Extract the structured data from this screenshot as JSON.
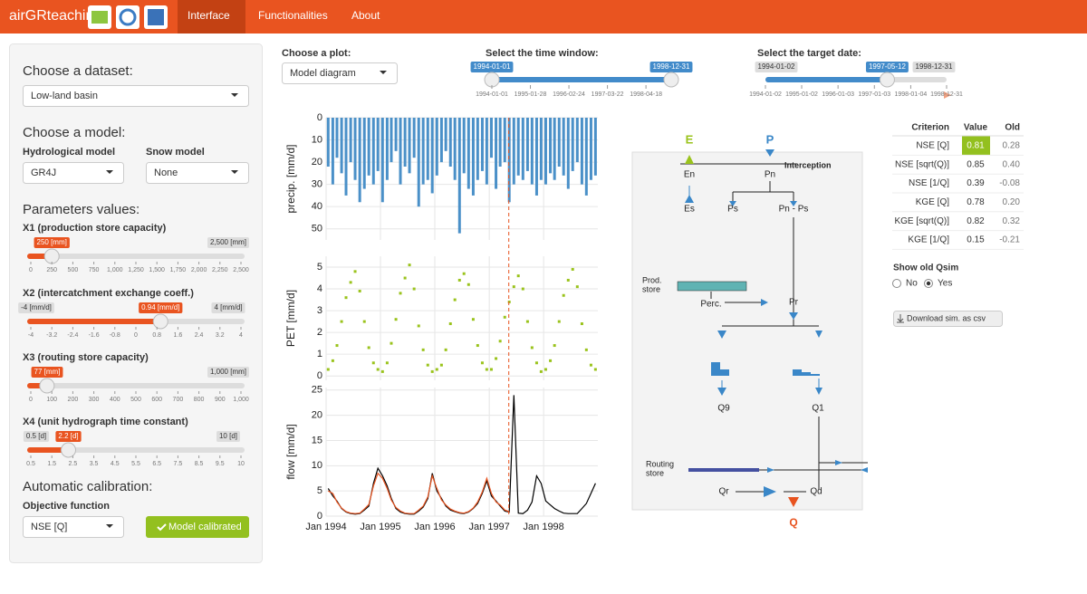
{
  "navbar": {
    "brand": "airGRteaching",
    "items": [
      "Interface",
      "Functionalities",
      "About"
    ],
    "active": "Interface"
  },
  "sidebar": {
    "dataset": {
      "title": "Choose a dataset:",
      "selected": "Low-land basin"
    },
    "model": {
      "title": "Choose a model:",
      "hydro_label": "Hydrological model",
      "hydro_selected": "GR4J",
      "snow_label": "Snow model",
      "snow_selected": "None"
    },
    "parameters": {
      "title": "Parameters values:",
      "sliders": [
        {
          "label": "X1 (production store capacity)",
          "min": 0,
          "max": 2500,
          "value": 250,
          "value_label": "250 [mm]",
          "max_label": "2,500 [mm]",
          "ticks": [
            "0",
            "250",
            "500",
            "750",
            "1,000",
            "1,250",
            "1,500",
            "1,750",
            "2,000",
            "2,250",
            "2,500"
          ]
        },
        {
          "label": "X2 (intercatchment exchange coeff.)",
          "min": -4,
          "max": 4,
          "value": 0.94,
          "min_label": "-4 [mm/d]",
          "value_label": "0.94 [mm/d]",
          "max_label": "4 [mm/d]",
          "ticks": [
            "-4",
            "-3.2",
            "-2.4",
            "-1.6",
            "-0.8",
            "0",
            "0.8",
            "1.6",
            "2.4",
            "3.2",
            "4"
          ]
        },
        {
          "label": "X3 (routing store capacity)",
          "min": 0,
          "max": 1000,
          "value": 77,
          "value_label": "77 [mm]",
          "max_label": "1,000 [mm]",
          "ticks": [
            "0",
            "100",
            "200",
            "300",
            "400",
            "500",
            "600",
            "700",
            "800",
            "900",
            "1,000"
          ]
        },
        {
          "label": "X4 (unit hydrograph time constant)",
          "min": 0.5,
          "max": 10,
          "value": 2.2,
          "min_label": "0.5 [d]",
          "value_label": "2.2 [d]",
          "max_label": "10 [d]",
          "ticks": [
            "0.5",
            "1.5",
            "2.5",
            "3.5",
            "4.5",
            "5.5",
            "6.5",
            "7.5",
            "8.5",
            "9.5",
            "10"
          ]
        }
      ]
    },
    "calibration": {
      "title": "Automatic calibration:",
      "objective_label": "Objective function",
      "objective_selected": "NSE [Q]",
      "button": "Model calibrated"
    }
  },
  "controls": {
    "plot": {
      "label": "Choose a plot:",
      "selected": "Model diagram"
    },
    "time_window": {
      "label": "Select the time window:",
      "values": [
        "1994-01-01",
        "1998-12-31"
      ],
      "ticks": [
        "1994-01-01",
        "1995-01-28",
        "1996-02-24",
        "1997-03-22",
        "1998-04-18"
      ]
    },
    "target_date": {
      "label": "Select the target date:",
      "min": "1994-01-02",
      "max": "1998-12-31",
      "value": "1997-05-12",
      "ticks": [
        "1994-01-02",
        "1995-01-02",
        "1996-01-03",
        "1997-01-03",
        "1998-01-04",
        "1998-12-31"
      ]
    }
  },
  "plots": {
    "x": [
      "1994-01",
      "1994-02",
      "1994-03",
      "1994-04",
      "1994-05",
      "1994-06",
      "1994-07",
      "1994-08",
      "1994-09",
      "1994-10",
      "1994-11",
      "1994-12",
      "1995-01",
      "1995-02",
      "1995-03",
      "1995-04",
      "1995-05",
      "1995-06",
      "1995-07",
      "1995-08",
      "1995-09",
      "1995-10",
      "1995-11",
      "1995-12",
      "1996-01",
      "1996-02",
      "1996-03",
      "1996-04",
      "1996-05",
      "1996-06",
      "1996-07",
      "1996-08",
      "1996-09",
      "1996-10",
      "1996-11",
      "1996-12",
      "1997-01",
      "1997-02",
      "1997-03",
      "1997-04",
      "1997-05",
      "1997-06",
      "1997-07",
      "1997-08",
      "1997-09",
      "1997-10",
      "1997-11",
      "1997-12",
      "1998-01",
      "1998-02",
      "1998-03",
      "1998-04",
      "1998-05",
      "1998-06",
      "1998-07",
      "1998-08",
      "1998-09",
      "1998-10",
      "1998-11",
      "1998-12"
    ],
    "xticks": [
      {
        "value": "1994-01",
        "label": "Jan 1994"
      },
      {
        "value": "1995-01",
        "label": "Jan 1995"
      },
      {
        "value": "1996-01",
        "label": "Jan 1996"
      },
      {
        "value": "1997-01",
        "label": "Jan 1997"
      },
      {
        "value": "1998-01",
        "label": "Jan 1998"
      }
    ],
    "precipitation": {
      "type": "bar",
      "y_label": "precip. [mm/d]",
      "inverted": true,
      "ylim": [
        0,
        55
      ],
      "yticks": [
        0,
        10,
        20,
        30,
        40,
        50
      ],
      "color": "#4a90c8",
      "values": [
        22,
        30,
        18,
        25,
        35,
        20,
        28,
        38,
        32,
        26,
        30,
        24,
        38,
        28,
        20,
        15,
        30,
        22,
        25,
        18,
        40,
        30,
        28,
        34,
        26,
        20,
        15,
        22,
        28,
        52,
        25,
        32,
        35,
        28,
        24,
        30,
        18,
        32,
        22,
        20,
        38,
        30,
        26,
        28,
        24,
        30,
        35,
        28,
        30,
        25,
        28,
        22,
        26,
        32,
        24,
        20,
        30,
        35,
        28,
        26
      ]
    },
    "pet": {
      "type": "scatter",
      "y_label": "PET [mm/d]",
      "ylim": [
        -0.2,
        5.5
      ],
      "yticks": [
        0,
        1,
        2,
        3,
        4,
        5
      ],
      "color": "#9ac31c",
      "values": [
        0.3,
        0.7,
        1.4,
        2.5,
        3.6,
        4.3,
        4.8,
        3.9,
        2.5,
        1.3,
        0.6,
        0.3,
        0.2,
        0.6,
        1.5,
        2.6,
        3.8,
        4.5,
        5.1,
        4.0,
        2.3,
        1.2,
        0.5,
        0.2,
        0.3,
        0.5,
        1.2,
        2.4,
        3.5,
        4.4,
        4.7,
        4.2,
        2.6,
        1.4,
        0.6,
        0.3,
        0.3,
        0.8,
        1.6,
        2.7,
        3.4,
        4.1,
        4.6,
        4.0,
        2.5,
        1.3,
        0.6,
        0.2,
        0.3,
        0.7,
        1.4,
        2.5,
        3.7,
        4.4,
        4.9,
        4.1,
        2.4,
        1.2,
        0.5,
        0.3
      ]
    },
    "flow": {
      "type": "line",
      "y_label": "flow [mm/d]",
      "ylim": [
        0,
        25.5
      ],
      "yticks": [
        0,
        5,
        10,
        15,
        20,
        25
      ],
      "series": [
        {
          "color": "#000000",
          "values": [
            5.5,
            4.0,
            3.0,
            1.5,
            0.8,
            0.5,
            0.4,
            0.5,
            1.2,
            2.0,
            6.5,
            9.5,
            8.0,
            6.0,
            3.5,
            1.5,
            0.8,
            0.5,
            0.4,
            0.4,
            1.0,
            1.8,
            3.5,
            8.5,
            5.0,
            3.5,
            2.0,
            1.2,
            0.9,
            0.6,
            0.5,
            0.8,
            1.5,
            2.5,
            4.5,
            7.0,
            4.0,
            3.0,
            2.0,
            1.0,
            0.8,
            24.0,
            0.6,
            0.5,
            1.2,
            2.8,
            8.0,
            6.5,
            3.0,
            2.2,
            1.5,
            1.0,
            0.6,
            0.5,
            0.5,
            0.5,
            1.5,
            2.5,
            4.5,
            6.5
          ]
        },
        {
          "color": "#e8531f",
          "values": [
            5.0,
            4.5,
            2.8,
            1.6,
            0.9,
            0.6,
            0.5,
            0.6,
            1.4,
            2.3,
            6.0,
            8.5,
            7.5,
            5.5,
            3.2,
            1.7,
            1.0,
            0.6,
            0.5,
            0.5,
            1.2,
            2.0,
            3.8,
            8.0,
            5.5,
            3.2,
            2.2,
            1.4,
            1.0,
            0.7,
            0.6,
            0.9,
            1.6,
            2.8,
            4.8,
            7.5,
            4.5,
            2.8,
            2.2,
            1.2,
            0.9,
            null,
            null,
            null,
            null,
            null,
            null,
            null,
            null,
            null,
            null,
            null,
            null,
            null,
            null,
            null,
            null,
            null,
            null,
            null
          ]
        }
      ]
    }
  },
  "diagram": {
    "labels": [
      "E",
      "P",
      "Interception",
      "En",
      "Pn",
      "Es",
      "Ps",
      "Pn - Ps",
      "Prod.",
      "store",
      "Perc.",
      "Pr",
      "Q9",
      "Q1",
      "Routing",
      "store",
      "Qr",
      "Qd",
      "Q"
    ]
  },
  "criteria": {
    "header": [
      "Criterion",
      "Value",
      "Old"
    ],
    "rows": [
      [
        "NSE [Q]",
        "0.81",
        "0.28"
      ],
      [
        "NSE [sqrt(Q)]",
        "0.85",
        "0.40"
      ],
      [
        "NSE [1/Q]",
        "0.39",
        "-0.08"
      ],
      [
        "KGE [Q]",
        "0.78",
        "0.20"
      ],
      [
        "KGE [sqrt(Q)]",
        "0.82",
        "0.32"
      ],
      [
        "KGE [1/Q]",
        "0.15",
        "-0.21"
      ]
    ]
  },
  "old_qsim": {
    "label": "Show old Qsim",
    "options": [
      "No",
      "Yes"
    ],
    "selected": "Yes"
  },
  "download": "Download sim. as csv"
}
